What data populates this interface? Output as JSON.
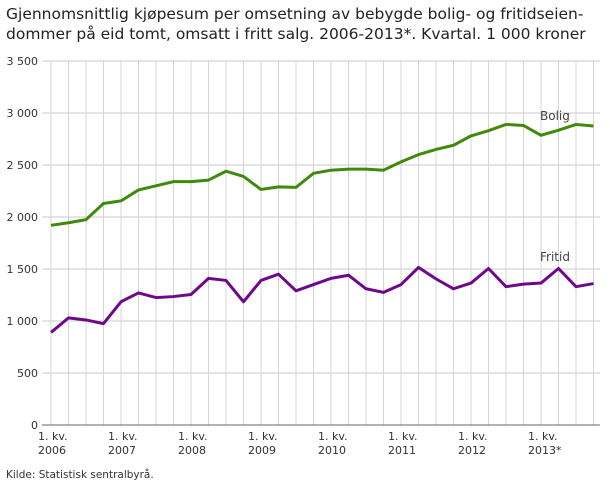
{
  "chart_data": {
    "type": "line",
    "title": "Gjennomsnittlig kjøpesum per omsetning av bebygde bolig- og fritidseien-dommer på eid tomt, omsatt i fritt salg. 2006-2013*. Kvartal. 1 000 kroner",
    "source": "Kilde: Statistisk sentralbyrå.",
    "ylim": [
      0,
      3500
    ],
    "yticks": [
      0,
      500,
      1000,
      1500,
      2000,
      2500,
      3000,
      3500
    ],
    "ytick_labels": [
      "0",
      "500",
      "1 000",
      "1 500",
      "2 000",
      "2 500",
      "3 000",
      "3 500"
    ],
    "x_tick_labels": [
      [
        "1. kv.",
        "2006"
      ],
      [
        "1. kv.",
        "2007"
      ],
      [
        "1. kv.",
        "2008"
      ],
      [
        "1. kv.",
        "2009"
      ],
      [
        "1. kv.",
        "2010"
      ],
      [
        "1. kv.",
        "2011"
      ],
      [
        "1. kv.",
        "2012"
      ],
      [
        "1. kv.",
        "2013*"
      ]
    ],
    "x_count": 32,
    "grid": true,
    "series": [
      {
        "name": "Bolig",
        "color": "#3f8a0a",
        "values": [
          1920,
          1945,
          1975,
          2130,
          2155,
          2260,
          2300,
          2340,
          2340,
          2355,
          2440,
          2390,
          2265,
          2290,
          2285,
          2420,
          2450,
          2460,
          2460,
          2450,
          2530,
          2600,
          2650,
          2690,
          2780,
          2830,
          2890,
          2880,
          2785,
          2835,
          2890,
          2875
        ]
      },
      {
        "name": "Fritid",
        "color": "#6e0a8a",
        "values": [
          890,
          1030,
          1010,
          975,
          1185,
          1270,
          1225,
          1235,
          1255,
          1410,
          1390,
          1185,
          1390,
          1450,
          1290,
          1350,
          1410,
          1440,
          1310,
          1275,
          1350,
          1515,
          1405,
          1310,
          1365,
          1505,
          1330,
          1355,
          1365,
          1505,
          1330,
          1360
        ]
      }
    ]
  }
}
